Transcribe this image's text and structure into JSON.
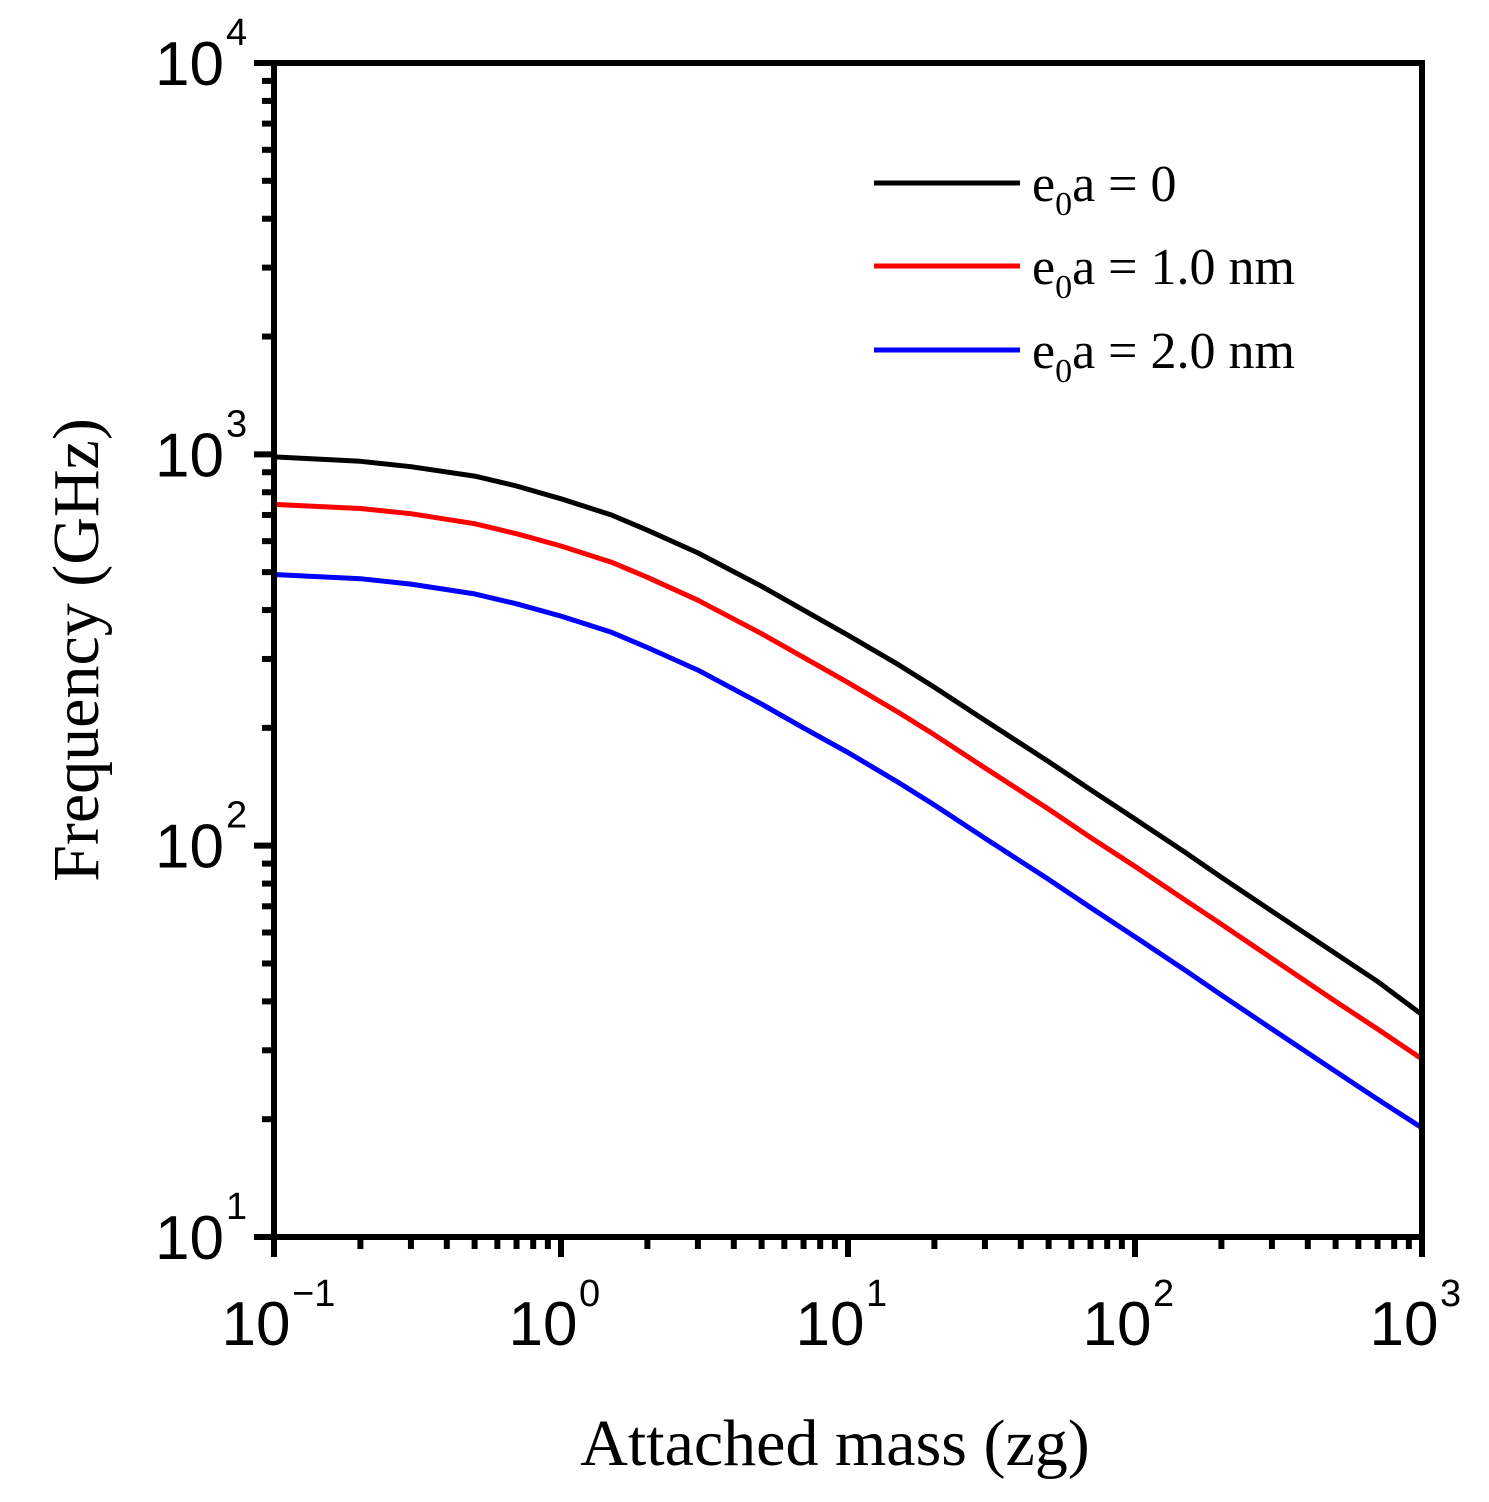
{
  "chart_data": {
    "type": "line",
    "title": "",
    "xlabel": "Attached mass (zg)",
    "ylabel": "Frequency (GHz)",
    "xscale": "log",
    "yscale": "log",
    "xlim": [
      0.1,
      1000
    ],
    "ylim": [
      10,
      10000
    ],
    "grid": false,
    "legend_position": "top-right",
    "x_ticks": [
      {
        "base": "10",
        "exp": "−1",
        "value": 0.1
      },
      {
        "base": "10",
        "exp": "0",
        "value": 1
      },
      {
        "base": "10",
        "exp": "1",
        "value": 10
      },
      {
        "base": "10",
        "exp": "2",
        "value": 100
      },
      {
        "base": "10",
        "exp": "3",
        "value": 1000
      }
    ],
    "y_ticks": [
      {
        "base": "10",
        "exp": "1",
        "value": 10
      },
      {
        "base": "10",
        "exp": "2",
        "value": 100
      },
      {
        "base": "10",
        "exp": "3",
        "value": 1000
      },
      {
        "base": "10",
        "exp": "4",
        "value": 10000
      }
    ],
    "x": [
      0.1,
      0.2,
      0.3,
      0.5,
      0.7,
      1,
      1.5,
      2,
      3,
      5,
      7,
      10,
      15,
      20,
      30,
      50,
      70,
      100,
      150,
      200,
      300,
      500,
      700,
      1000
    ],
    "series": [
      {
        "name": "e0a = 0",
        "label_main": "e",
        "label_sub": "0",
        "label_rest": "a = 0",
        "color": "#000000",
        "values": [
          985,
          960,
          930,
          880,
          830,
          770,
          700,
          640,
          560,
          460,
          400,
          345,
          290,
          254,
          209,
          164,
          139,
          117,
          96,
          83,
          68,
          53,
          45,
          37
        ]
      },
      {
        "name": "e0a = 1.0 nm",
        "label_main": "e",
        "label_sub": "0",
        "label_rest": "a = 1.0 nm",
        "color": "#ff0000",
        "values": [
          745,
          727,
          705,
          665,
          627,
          583,
          530,
          485,
          424,
          348,
          303,
          261,
          219,
          192,
          158,
          124,
          105,
          88.5,
          72.5,
          63,
          51.5,
          40,
          34,
          28.5
        ]
      },
      {
        "name": "e0a = 2.0 nm",
        "label_main": "e",
        "label_sub": "0",
        "label_rest": "a = 2.0 nm",
        "color": "#0000ff",
        "values": [
          493,
          481,
          466,
          440,
          415,
          386,
          351,
          321,
          281,
          230,
          200,
          173,
          145,
          127,
          104.5,
          82,
          69.5,
          58.5,
          48,
          41.5,
          34,
          26.5,
          22.5,
          19
        ]
      }
    ]
  }
}
